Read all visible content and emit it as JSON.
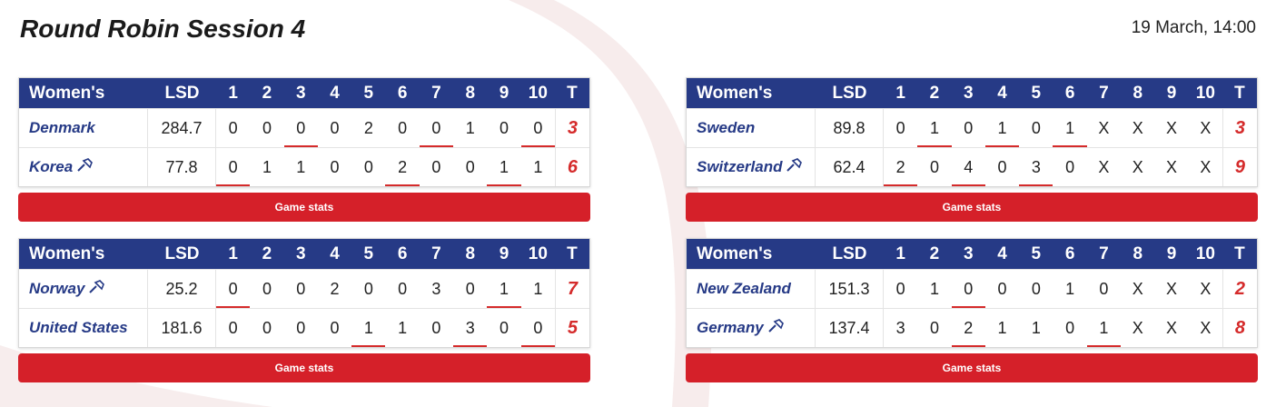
{
  "header": {
    "title": "Round Robin Session 4",
    "date": "19 March, 14:00"
  },
  "columns": {
    "category": "Women's",
    "lsd": "LSD",
    "ends": [
      "1",
      "2",
      "3",
      "4",
      "5",
      "6",
      "7",
      "8",
      "9",
      "10"
    ],
    "total": "T"
  },
  "colors": {
    "navy": "#263a86",
    "red": "#d52029"
  },
  "games": [
    {
      "button_label": "Game stats",
      "teams": [
        {
          "name": "Denmark",
          "hammer": false,
          "lsd": "284.7",
          "ends": [
            "0",
            "0",
            "0",
            "0",
            "2",
            "0",
            "0",
            "1",
            "0",
            "0"
          ],
          "scored": [
            false,
            false,
            true,
            false,
            false,
            false,
            true,
            false,
            false,
            true
          ],
          "total": "3"
        },
        {
          "name": "Korea",
          "hammer": true,
          "lsd": "77.8",
          "ends": [
            "0",
            "1",
            "1",
            "0",
            "0",
            "2",
            "0",
            "0",
            "1",
            "1"
          ],
          "scored": [
            true,
            false,
            false,
            false,
            false,
            true,
            false,
            false,
            true,
            false
          ],
          "total": "6"
        }
      ]
    },
    {
      "button_label": "Game stats",
      "teams": [
        {
          "name": "Sweden",
          "hammer": false,
          "lsd": "89.8",
          "ends": [
            "0",
            "1",
            "0",
            "1",
            "0",
            "1",
            "X",
            "X",
            "X",
            "X"
          ],
          "scored": [
            false,
            true,
            false,
            true,
            false,
            true,
            false,
            false,
            false,
            false
          ],
          "total": "3"
        },
        {
          "name": "Switzerland",
          "hammer": true,
          "lsd": "62.4",
          "ends": [
            "2",
            "0",
            "4",
            "0",
            "3",
            "0",
            "X",
            "X",
            "X",
            "X"
          ],
          "scored": [
            true,
            false,
            true,
            false,
            true,
            false,
            false,
            false,
            false,
            false
          ],
          "total": "9"
        }
      ]
    },
    {
      "button_label": "Game stats",
      "teams": [
        {
          "name": "Norway",
          "hammer": true,
          "lsd": "25.2",
          "ends": [
            "0",
            "0",
            "0",
            "2",
            "0",
            "0",
            "3",
            "0",
            "1",
            "1"
          ],
          "scored": [
            true,
            false,
            false,
            false,
            false,
            false,
            false,
            false,
            true,
            false
          ],
          "total": "7"
        },
        {
          "name": "United States",
          "hammer": false,
          "lsd": "181.6",
          "ends": [
            "0",
            "0",
            "0",
            "0",
            "1",
            "1",
            "0",
            "3",
            "0",
            "0"
          ],
          "scored": [
            false,
            false,
            false,
            false,
            true,
            false,
            false,
            true,
            false,
            true
          ],
          "total": "5"
        }
      ]
    },
    {
      "button_label": "Game stats",
      "teams": [
        {
          "name": "New Zealand",
          "hammer": false,
          "lsd": "151.3",
          "ends": [
            "0",
            "1",
            "0",
            "0",
            "0",
            "1",
            "0",
            "X",
            "X",
            "X"
          ],
          "scored": [
            false,
            false,
            true,
            false,
            false,
            false,
            false,
            false,
            false,
            false
          ],
          "total": "2"
        },
        {
          "name": "Germany",
          "hammer": true,
          "lsd": "137.4",
          "ends": [
            "3",
            "0",
            "2",
            "1",
            "1",
            "0",
            "1",
            "X",
            "X",
            "X"
          ],
          "scored": [
            false,
            false,
            true,
            false,
            false,
            false,
            true,
            false,
            false,
            false
          ],
          "total": "8"
        }
      ]
    }
  ]
}
